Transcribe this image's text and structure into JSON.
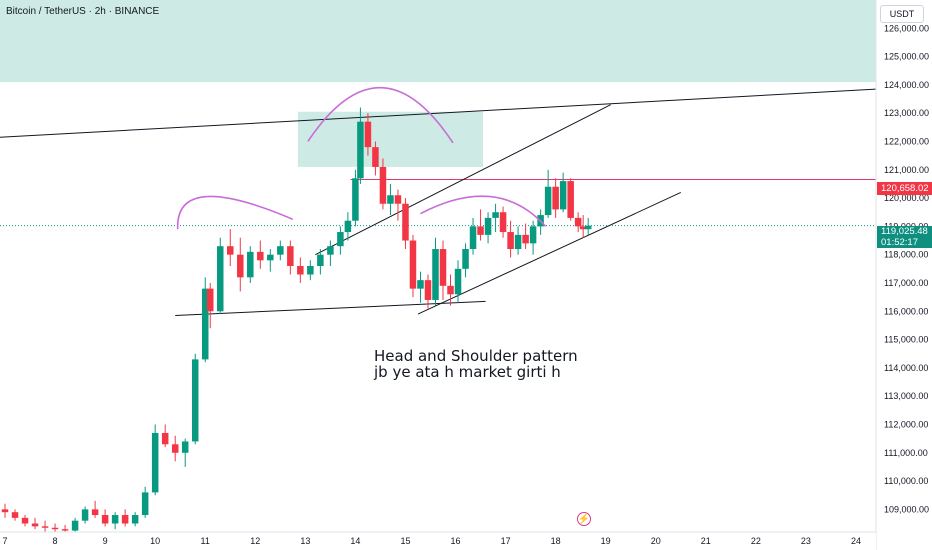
{
  "header": {
    "title": "Bitcoin / TetherUS · 2h · BINANCE",
    "currency": "USDT"
  },
  "annotation": {
    "line1": "Head and Shoulder pattern",
    "line2": "jb ye ata h market girti h"
  },
  "price_tags": {
    "line_price": "120,658.02",
    "last_price": "119,025.48",
    "countdown": "01:52:17"
  },
  "colors": {
    "up": "#089981",
    "down": "#f23645",
    "zone": "#b2e0d6",
    "trendline": "#131722",
    "arc": "#c86dd7",
    "hline": "#e0386b"
  },
  "icons": {
    "alert": "lightning-icon"
  },
  "chart_data": {
    "type": "candlestick",
    "title": "Bitcoin / TetherUS · 2h · BINANCE",
    "yticks": [
      "126,000.00",
      "125,000.00",
      "124,000.00",
      "123,000.00",
      "122,000.00",
      "121,000.00",
      "120,000.00",
      "119,000.00",
      "118,000.00",
      "117,000.00",
      "116,000.00",
      "115,000.00",
      "114,000.00",
      "113,000.00",
      "112,000.00",
      "111,000.00",
      "110,000.00",
      "109,000.00"
    ],
    "xticks": [
      "7",
      "8",
      "9",
      "10",
      "11",
      "12",
      "13",
      "14",
      "15",
      "16",
      "17",
      "18",
      "19",
      "20",
      "21",
      "22",
      "23",
      "24"
    ],
    "ylim": [
      108200,
      127000
    ],
    "xlim": [
      6.9,
      24.4
    ],
    "zones": [
      {
        "x": [
          6.9,
          24.4
        ],
        "y": [
          124100,
          127000
        ]
      },
      {
        "x": [
          12.85,
          16.55
        ],
        "y": [
          121100,
          123050
        ]
      }
    ],
    "trendlines": [
      {
        "x": [
          6.9,
          24.4
        ],
        "y": [
          122150,
          123850
        ]
      },
      {
        "x": [
          10.4,
          16.6
        ],
        "y": [
          115850,
          116350
        ]
      },
      {
        "x": [
          13.2,
          19.1
        ],
        "y": [
          118000,
          123300
        ]
      },
      {
        "x": [
          15.25,
          20.5
        ],
        "y": [
          115900,
          120200
        ]
      }
    ],
    "hlines": [
      {
        "y": 120658.02,
        "x_from": 13.9
      },
      {
        "y": 119025.48,
        "x_from": 6.9,
        "dotted": true
      }
    ],
    "arcs": [
      {
        "x": [
          10.45,
          11.0,
          12.75
        ],
        "y": [
          118900,
          120050,
          119250
        ]
      },
      {
        "x": [
          13.05,
          14.5,
          15.95
        ],
        "y": [
          122000,
          123900,
          121950
        ]
      },
      {
        "x": [
          15.3,
          16.7,
          17.8
        ],
        "y": [
          119450,
          120050,
          119000
        ]
      }
    ],
    "candles": [
      {
        "t": 7.0,
        "o": 109000,
        "h": 109200,
        "l": 108700,
        "c": 108900
      },
      {
        "t": 7.2,
        "o": 108900,
        "h": 109000,
        "l": 108600,
        "c": 108700
      },
      {
        "t": 7.4,
        "o": 108700,
        "h": 108800,
        "l": 108400,
        "c": 108500
      },
      {
        "t": 7.6,
        "o": 108500,
        "h": 108700,
        "l": 108300,
        "c": 108400
      },
      {
        "t": 7.8,
        "o": 108400,
        "h": 108600,
        "l": 108200,
        "c": 108350
      },
      {
        "t": 8.0,
        "o": 108350,
        "h": 108500,
        "l": 108200,
        "c": 108300
      },
      {
        "t": 8.2,
        "o": 108300,
        "h": 108450,
        "l": 108100,
        "c": 108250
      },
      {
        "t": 8.4,
        "o": 108250,
        "h": 108700,
        "l": 108200,
        "c": 108600
      },
      {
        "t": 8.6,
        "o": 108600,
        "h": 109100,
        "l": 108500,
        "c": 109000
      },
      {
        "t": 8.8,
        "o": 109000,
        "h": 109300,
        "l": 108700,
        "c": 108800
      },
      {
        "t": 9.0,
        "o": 108800,
        "h": 109000,
        "l": 108400,
        "c": 108500
      },
      {
        "t": 9.2,
        "o": 108500,
        "h": 108900,
        "l": 108300,
        "c": 108800
      },
      {
        "t": 9.4,
        "o": 108800,
        "h": 109000,
        "l": 108400,
        "c": 108500
      },
      {
        "t": 9.6,
        "o": 108500,
        "h": 108900,
        "l": 108400,
        "c": 108800
      },
      {
        "t": 9.8,
        "o": 108800,
        "h": 109800,
        "l": 108700,
        "c": 109600
      },
      {
        "t": 10.0,
        "o": 109600,
        "h": 112000,
        "l": 109500,
        "c": 111700
      },
      {
        "t": 10.2,
        "o": 111700,
        "h": 112000,
        "l": 111200,
        "c": 111300
      },
      {
        "t": 10.4,
        "o": 111300,
        "h": 111600,
        "l": 110700,
        "c": 111000
      },
      {
        "t": 10.6,
        "o": 111000,
        "h": 111500,
        "l": 110500,
        "c": 111400
      },
      {
        "t": 10.8,
        "o": 111400,
        "h": 114500,
        "l": 111300,
        "c": 114300
      },
      {
        "t": 11.0,
        "o": 114300,
        "h": 117200,
        "l": 114200,
        "c": 116800
      },
      {
        "t": 11.1,
        "o": 116800,
        "h": 117000,
        "l": 115400,
        "c": 116000
      },
      {
        "t": 11.3,
        "o": 116000,
        "h": 118600,
        "l": 115900,
        "c": 118300
      },
      {
        "t": 11.5,
        "o": 118300,
        "h": 118900,
        "l": 117600,
        "c": 118000
      },
      {
        "t": 11.7,
        "o": 118000,
        "h": 118600,
        "l": 116700,
        "c": 117200
      },
      {
        "t": 11.9,
        "o": 117200,
        "h": 118300,
        "l": 117000,
        "c": 118100
      },
      {
        "t": 12.1,
        "o": 118100,
        "h": 118500,
        "l": 117500,
        "c": 117800
      },
      {
        "t": 12.3,
        "o": 117800,
        "h": 118200,
        "l": 117400,
        "c": 118000
      },
      {
        "t": 12.5,
        "o": 118000,
        "h": 118500,
        "l": 117800,
        "c": 118300
      },
      {
        "t": 12.7,
        "o": 118300,
        "h": 118500,
        "l": 117300,
        "c": 117600
      },
      {
        "t": 12.9,
        "o": 117600,
        "h": 117900,
        "l": 117000,
        "c": 117300
      },
      {
        "t": 13.1,
        "o": 117300,
        "h": 117800,
        "l": 117100,
        "c": 117600
      },
      {
        "t": 13.3,
        "o": 117600,
        "h": 118200,
        "l": 117300,
        "c": 118000
      },
      {
        "t": 13.5,
        "o": 118000,
        "h": 118500,
        "l": 117600,
        "c": 118300
      },
      {
        "t": 13.7,
        "o": 118300,
        "h": 119000,
        "l": 118000,
        "c": 118800
      },
      {
        "t": 13.85,
        "o": 118800,
        "h": 119500,
        "l": 118500,
        "c": 119200
      },
      {
        "t": 14.0,
        "o": 119200,
        "h": 121000,
        "l": 119000,
        "c": 120700
      },
      {
        "t": 14.1,
        "o": 120700,
        "h": 123200,
        "l": 120500,
        "c": 122700
      },
      {
        "t": 14.25,
        "o": 122700,
        "h": 123000,
        "l": 121500,
        "c": 121800
      },
      {
        "t": 14.4,
        "o": 121800,
        "h": 122000,
        "l": 120800,
        "c": 121100
      },
      {
        "t": 14.55,
        "o": 121100,
        "h": 121400,
        "l": 119600,
        "c": 119800
      },
      {
        "t": 14.7,
        "o": 119800,
        "h": 120500,
        "l": 119400,
        "c": 120100
      },
      {
        "t": 14.85,
        "o": 120100,
        "h": 120300,
        "l": 119200,
        "c": 119800
      },
      {
        "t": 15.0,
        "o": 119800,
        "h": 120000,
        "l": 118200,
        "c": 118500
      },
      {
        "t": 15.15,
        "o": 118500,
        "h": 118700,
        "l": 116500,
        "c": 116800
      },
      {
        "t": 15.3,
        "o": 116800,
        "h": 117400,
        "l": 116300,
        "c": 117100
      },
      {
        "t": 15.45,
        "o": 117100,
        "h": 117300,
        "l": 116100,
        "c": 116400
      },
      {
        "t": 15.6,
        "o": 116400,
        "h": 118600,
        "l": 116200,
        "c": 118200
      },
      {
        "t": 15.75,
        "o": 118200,
        "h": 118500,
        "l": 116400,
        "c": 116900
      },
      {
        "t": 15.9,
        "o": 116900,
        "h": 117300,
        "l": 116200,
        "c": 116600
      },
      {
        "t": 16.05,
        "o": 116600,
        "h": 117800,
        "l": 116300,
        "c": 117500
      },
      {
        "t": 16.2,
        "o": 117500,
        "h": 118400,
        "l": 117200,
        "c": 118200
      },
      {
        "t": 16.35,
        "o": 118200,
        "h": 119300,
        "l": 118000,
        "c": 119000
      },
      {
        "t": 16.5,
        "o": 119000,
        "h": 119600,
        "l": 118500,
        "c": 118700
      },
      {
        "t": 16.65,
        "o": 118700,
        "h": 119500,
        "l": 118400,
        "c": 119300
      },
      {
        "t": 16.8,
        "o": 119300,
        "h": 119800,
        "l": 118800,
        "c": 119500
      },
      {
        "t": 16.95,
        "o": 119500,
        "h": 119700,
        "l": 118600,
        "c": 118800
      },
      {
        "t": 17.1,
        "o": 118800,
        "h": 119200,
        "l": 117900,
        "c": 118200
      },
      {
        "t": 17.25,
        "o": 118200,
        "h": 119000,
        "l": 118000,
        "c": 118700
      },
      {
        "t": 17.4,
        "o": 118700,
        "h": 119100,
        "l": 118200,
        "c": 118400
      },
      {
        "t": 17.55,
        "o": 118400,
        "h": 119200,
        "l": 118000,
        "c": 119000
      },
      {
        "t": 17.7,
        "o": 119000,
        "h": 119600,
        "l": 118700,
        "c": 119400
      },
      {
        "t": 17.85,
        "o": 119400,
        "h": 121000,
        "l": 119300,
        "c": 120400
      },
      {
        "t": 18.0,
        "o": 120400,
        "h": 120700,
        "l": 119300,
        "c": 119600
      },
      {
        "t": 18.15,
        "o": 119600,
        "h": 120900,
        "l": 119500,
        "c": 120600
      },
      {
        "t": 18.3,
        "o": 120600,
        "h": 120700,
        "l": 119200,
        "c": 119300
      },
      {
        "t": 18.45,
        "o": 119300,
        "h": 119500,
        "l": 118800,
        "c": 119000
      },
      {
        "t": 18.55,
        "o": 119000,
        "h": 119400,
        "l": 118600,
        "c": 118900
      },
      {
        "t": 18.65,
        "o": 118900,
        "h": 119300,
        "l": 118700,
        "c": 119025
      }
    ]
  }
}
